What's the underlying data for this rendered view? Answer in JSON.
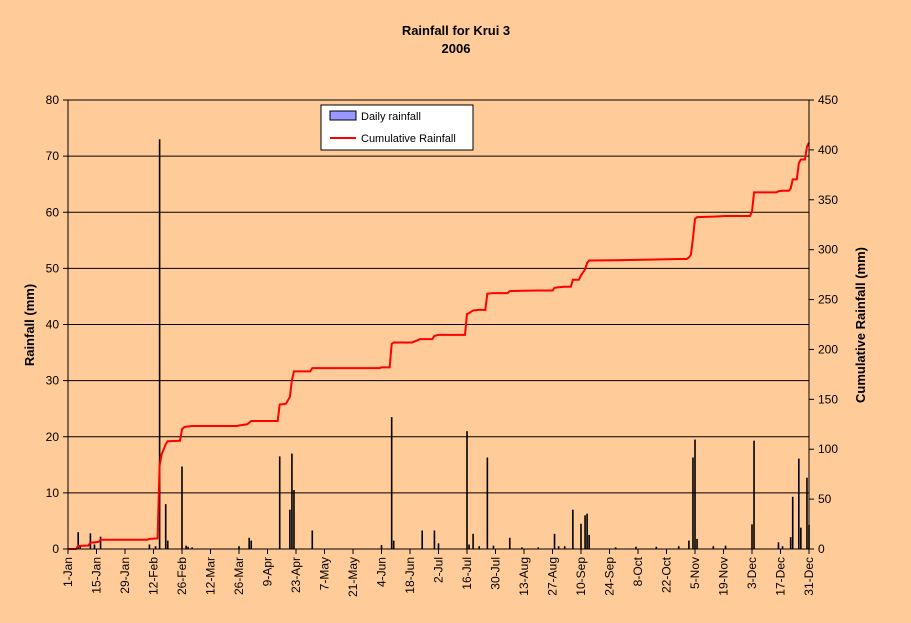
{
  "colors": {
    "background": "#ffcc99",
    "bars": "#000000",
    "legend_bar_fill": "#9999ff",
    "cumulative_line": "#ff0000",
    "gridline": "#000000"
  },
  "chart_data": {
    "type": "bar+line",
    "title": "Rainfall for Krui 3",
    "subtitle": "2006",
    "ylabel": "Rainfall (mm)",
    "y2label": "Cumulative Rainfall (mm)",
    "ylim": [
      0,
      80
    ],
    "y2lim": [
      0,
      450
    ],
    "yticks": [
      "0",
      "10",
      "20",
      "30",
      "40",
      "50",
      "60",
      "70",
      "80"
    ],
    "y2ticks": [
      "0",
      "50",
      "100",
      "150",
      "200",
      "250",
      "300",
      "350",
      "400",
      "450"
    ],
    "x_range_days": [
      1,
      365
    ],
    "xtick_labels": [
      "1-Jan",
      "15-Jan",
      "29-Jan",
      "12-Feb",
      "26-Feb",
      "12-Mar",
      "26-Mar",
      "9-Apr",
      "23-Apr",
      "7-May",
      "21-May",
      "4-Jun",
      "18-Jun",
      "2-Jul",
      "16-Jul",
      "30-Jul",
      "13-Aug",
      "27-Aug",
      "10-Sep",
      "24-Sep",
      "8-Oct",
      "22-Oct",
      "5-Nov",
      "19-Nov",
      "3-Dec",
      "17-Dec",
      "31-Dec"
    ],
    "grid": true,
    "legend_position": "top-center",
    "series": [
      {
        "name": "Daily rainfall",
        "type": "bar",
        "axis": "left",
        "points": [
          [
            6,
            3
          ],
          [
            7,
            0.5
          ],
          [
            12,
            2.8
          ],
          [
            14,
            0.8
          ],
          [
            17,
            2.2
          ],
          [
            41,
            0.8
          ],
          [
            44,
            0.5
          ],
          [
            46,
            73
          ],
          [
            49,
            8
          ],
          [
            50,
            1.5
          ],
          [
            57,
            14.7
          ],
          [
            59,
            0.6
          ],
          [
            60,
            0.4
          ],
          [
            62,
            0.3
          ],
          [
            85,
            0.5
          ],
          [
            90,
            2
          ],
          [
            91,
            1.5
          ],
          [
            105,
            16.5
          ],
          [
            110,
            7
          ],
          [
            111,
            17
          ],
          [
            112,
            10.5
          ],
          [
            121,
            3.3
          ],
          [
            155,
            0.7
          ],
          [
            160,
            23.5
          ],
          [
            161,
            1.5
          ],
          [
            175,
            3.3
          ],
          [
            181,
            3.3
          ],
          [
            183,
            1
          ],
          [
            197,
            21
          ],
          [
            198,
            0.8
          ],
          [
            200,
            2.7
          ],
          [
            203,
            0.5
          ],
          [
            207,
            16.3
          ],
          [
            210,
            0.6
          ],
          [
            218,
            2
          ],
          [
            224,
            0.3
          ],
          [
            232,
            0.3
          ],
          [
            240,
            2.7
          ],
          [
            242,
            0.5
          ],
          [
            245,
            0.5
          ],
          [
            249,
            7
          ],
          [
            253,
            4.5
          ],
          [
            255,
            6
          ],
          [
            256,
            6.3
          ],
          [
            257,
            2.5
          ],
          [
            270,
            0.3
          ],
          [
            280,
            0.4
          ],
          [
            290,
            0.4
          ],
          [
            301,
            0.5
          ],
          [
            306,
            1.5
          ],
          [
            308,
            16.3
          ],
          [
            309,
            19.5
          ],
          [
            310,
            1.8
          ],
          [
            318,
            0.5
          ],
          [
            324,
            0.6
          ],
          [
            337,
            4.4
          ],
          [
            338,
            19.3
          ],
          [
            350,
            1.2
          ],
          [
            352,
            0.5
          ],
          [
            356,
            2.1
          ],
          [
            357,
            9.3
          ],
          [
            360,
            16.1
          ],
          [
            361,
            3.8
          ],
          [
            364,
            12.7
          ],
          [
            365,
            4.3
          ]
        ]
      },
      {
        "name": "Cumulative Rainfall",
        "type": "line",
        "axis": "right",
        "points": [
          [
            1,
            0
          ],
          [
            5,
            0
          ],
          [
            6,
            3
          ],
          [
            11,
            3.5
          ],
          [
            12,
            6.3
          ],
          [
            16,
            7.1
          ],
          [
            17,
            9.3
          ],
          [
            40,
            9.3
          ],
          [
            41,
            10.1
          ],
          [
            45,
            10.6
          ],
          [
            46,
            83.6
          ],
          [
            47,
            95
          ],
          [
            48,
            100
          ],
          [
            49,
            105
          ],
          [
            50,
            108
          ],
          [
            56,
            108.5
          ],
          [
            57,
            120
          ],
          [
            58,
            122
          ],
          [
            59,
            122.6
          ],
          [
            62,
            123.3
          ],
          [
            84,
            123.3
          ],
          [
            85,
            123.8
          ],
          [
            89,
            125
          ],
          [
            91,
            128.3
          ],
          [
            104,
            128.3
          ],
          [
            105,
            144.8
          ],
          [
            108,
            145.5
          ],
          [
            110,
            152.5
          ],
          [
            111,
            169.5
          ],
          [
            112,
            178
          ],
          [
            120,
            178
          ],
          [
            121,
            181.3
          ],
          [
            154,
            181.3
          ],
          [
            155,
            182
          ],
          [
            159,
            182
          ],
          [
            160,
            205.5
          ],
          [
            161,
            207
          ],
          [
            170,
            207
          ],
          [
            174,
            210.3
          ],
          [
            180,
            210.3
          ],
          [
            181,
            213.6
          ],
          [
            183,
            214.6
          ],
          [
            196,
            214.6
          ],
          [
            197,
            235.6
          ],
          [
            198,
            236.4
          ],
          [
            200,
            239.1
          ],
          [
            203,
            239.6
          ],
          [
            206,
            239.6
          ],
          [
            207,
            255.9
          ],
          [
            210,
            256.5
          ],
          [
            217,
            256.5
          ],
          [
            218,
            258.5
          ],
          [
            224,
            258.8
          ],
          [
            232,
            259.1
          ],
          [
            239,
            259.1
          ],
          [
            240,
            261.8
          ],
          [
            242,
            262.3
          ],
          [
            245,
            262.8
          ],
          [
            248,
            262.8
          ],
          [
            249,
            269.8
          ],
          [
            252,
            269.8
          ],
          [
            253,
            274.3
          ],
          [
            255,
            280.3
          ],
          [
            256,
            286.6
          ],
          [
            257,
            289.1
          ],
          [
            270,
            289.4
          ],
          [
            280,
            289.8
          ],
          [
            290,
            290.2
          ],
          [
            301,
            290.7
          ],
          [
            305,
            290.7
          ],
          [
            306,
            292.2
          ],
          [
            307,
            295
          ],
          [
            308,
            311.3
          ],
          [
            309,
            330.8
          ],
          [
            310,
            332.6
          ],
          [
            318,
            333.1
          ],
          [
            324,
            333.7
          ],
          [
            336,
            333.7
          ],
          [
            337,
            338.1
          ],
          [
            338,
            357.4
          ],
          [
            349,
            357.4
          ],
          [
            350,
            358.6
          ],
          [
            352,
            359.1
          ],
          [
            355,
            359.1
          ],
          [
            356,
            361.2
          ],
          [
            357,
            370.5
          ],
          [
            359,
            370.5
          ],
          [
            360,
            386.6
          ],
          [
            361,
            390.4
          ],
          [
            363,
            390.4
          ],
          [
            364,
            403.1
          ],
          [
            365,
            407.4
          ]
        ]
      }
    ]
  }
}
